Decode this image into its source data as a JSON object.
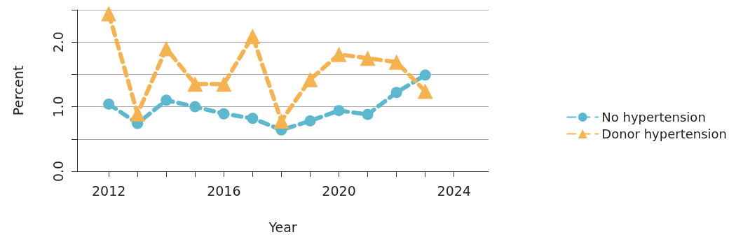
{
  "chart_data": {
    "type": "line",
    "xlabel": "Year",
    "ylabel": "Percent",
    "x": [
      2012,
      2013,
      2014,
      2015,
      2016,
      2017,
      2018,
      2019,
      2020,
      2021,
      2022,
      2023
    ],
    "series": [
      {
        "name": "No hypertension",
        "color": "#5bb8cf",
        "marker": "circle",
        "values": [
          1.04,
          0.74,
          1.1,
          1.0,
          0.89,
          0.82,
          0.64,
          0.78,
          0.94,
          0.88,
          1.22,
          1.49
        ]
      },
      {
        "name": "Donor hypertension",
        "color": "#f5b24e",
        "marker": "triangle",
        "values": [
          2.44,
          0.89,
          1.9,
          1.35,
          1.35,
          2.09,
          0.78,
          1.42,
          1.81,
          1.75,
          1.69,
          1.24
        ]
      }
    ],
    "xlim": [
      2010.9,
      2025.2
    ],
    "xticks": [
      2012,
      {
        "value": 2013,
        "label": null
      },
      {
        "value": 2014,
        "label": null
      },
      {
        "value": 2015,
        "label": null
      },
      2016,
      {
        "value": 2017,
        "label": null
      },
      {
        "value": 2018,
        "label": null
      },
      {
        "value": 2019,
        "label": null
      },
      2020,
      {
        "value": 2021,
        "label": null
      },
      {
        "value": 2022,
        "label": null
      },
      {
        "value": 2023,
        "label": null
      },
      2024
    ],
    "ylim": [
      0,
      2.5
    ],
    "yticks": [
      {
        "value": 0,
        "label": "0.0"
      },
      {
        "value": 0.5,
        "label": null
      },
      {
        "value": 1,
        "label": "1.0"
      },
      {
        "value": 1.5,
        "label": null
      },
      {
        "value": 2,
        "label": "2.0"
      },
      {
        "value": 2.5,
        "label": null
      }
    ],
    "grid": "y",
    "legend": "right",
    "line_style": "dashed"
  }
}
